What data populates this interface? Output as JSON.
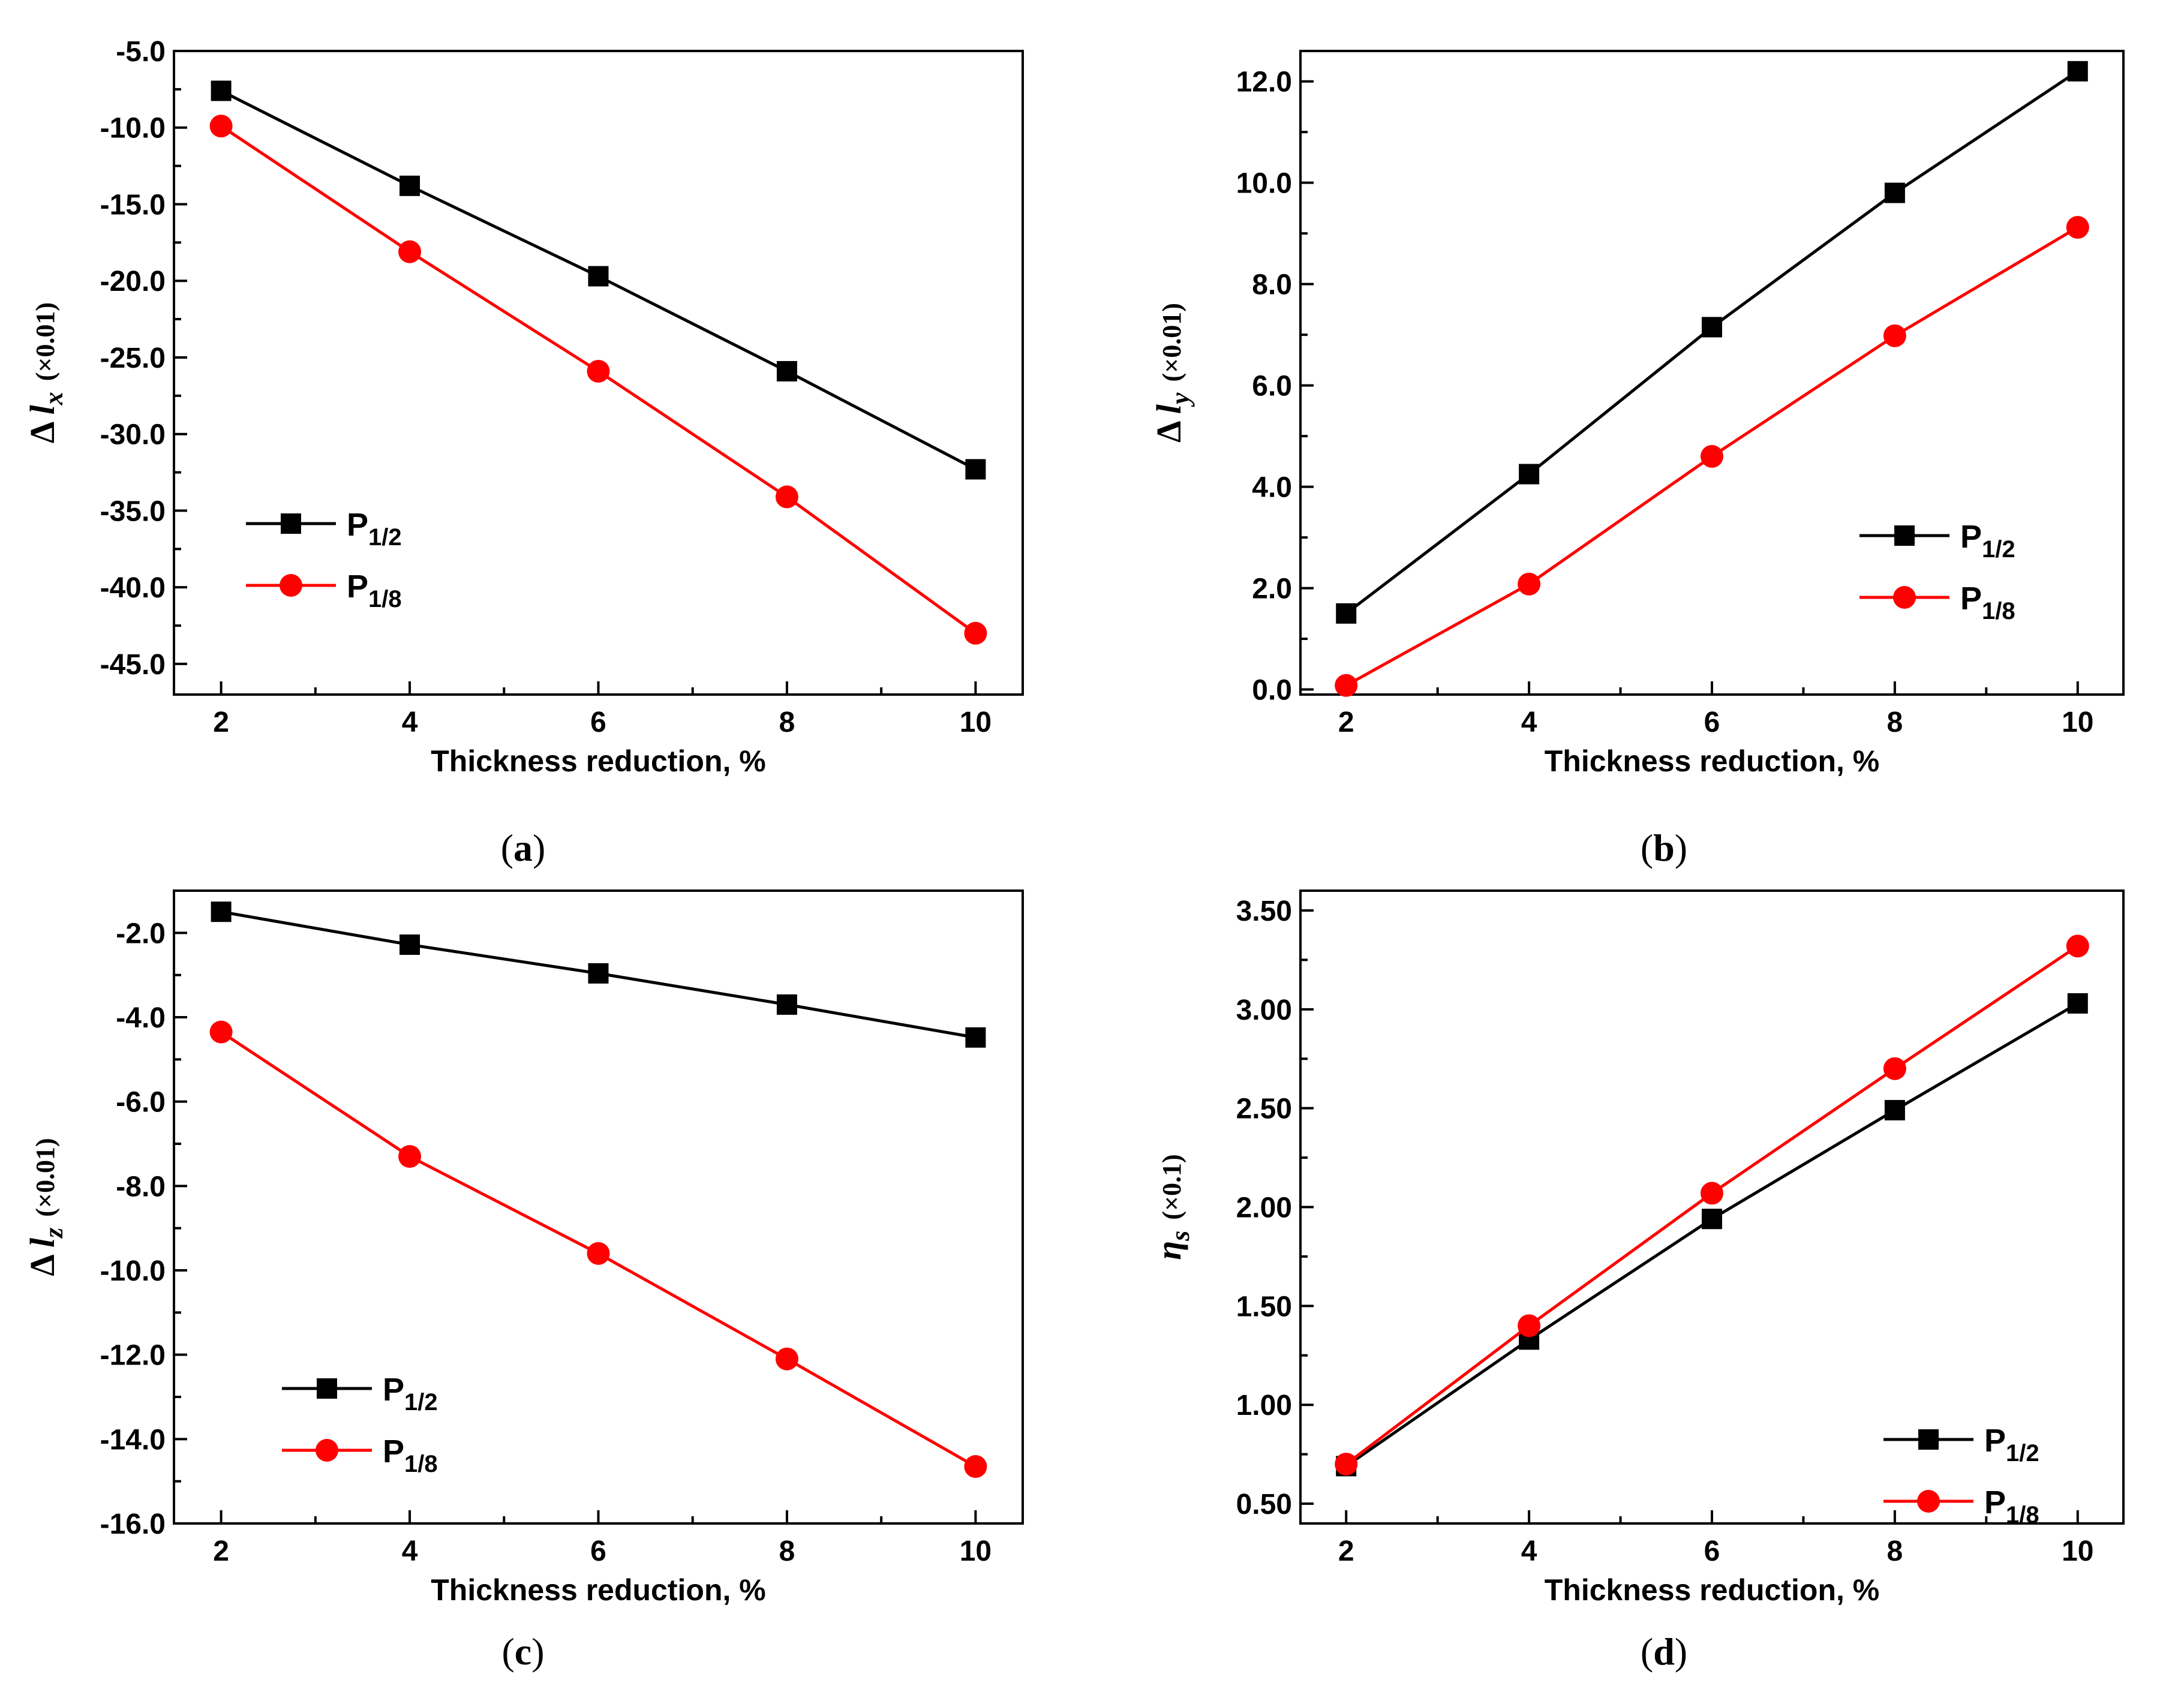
{
  "colors": {
    "p12": "#000000",
    "p18": "#ff0000"
  },
  "chart_data": [
    {
      "panel": "a",
      "type": "line",
      "caption": {
        "open": "(",
        "letter": "a",
        "close": ")"
      },
      "xlabel": "Thickness reduction, %",
      "ylabel": {
        "prefix": "Δ ",
        "var": "l",
        "sub": "x",
        "unit": "(×0.01)"
      },
      "x": [
        2,
        4,
        6,
        8,
        10
      ],
      "xticks": [
        "2",
        "4",
        "6",
        "8",
        "10"
      ],
      "xlim": [
        1.5,
        10.5
      ],
      "ylim": [
        -47.0,
        -5.0
      ],
      "yticks": [
        -45,
        -40,
        -35,
        -30,
        -25,
        -20,
        -15,
        -10,
        -5
      ],
      "ytick_labels": [
        "-45.0",
        "-40.0",
        "-35.0",
        "-30.0",
        "-25.0",
        "-20.0",
        "-15.0",
        "-10.0",
        "-5.0"
      ],
      "legend_position": "bottom-left",
      "series": [
        {
          "name": "P",
          "sub": "1/2",
          "marker": "square",
          "color": "#000000",
          "values": [
            -7.6,
            -13.8,
            -19.7,
            -25.9,
            -32.3
          ]
        },
        {
          "name": "P",
          "sub": "1/8",
          "marker": "circle",
          "color": "#ff0000",
          "values": [
            -9.9,
            -18.1,
            -25.9,
            -34.1,
            -43.0
          ]
        }
      ]
    },
    {
      "panel": "b",
      "type": "line",
      "caption": {
        "open": "(",
        "letter": "b",
        "close": ")"
      },
      "xlabel": "Thickness reduction, %",
      "ylabel": {
        "prefix": "Δ ",
        "var": "l",
        "sub": "y",
        "unit": "(×0.01)"
      },
      "x": [
        2,
        4,
        6,
        8,
        10
      ],
      "xticks": [
        "2",
        "4",
        "6",
        "8",
        "10"
      ],
      "xlim": [
        1.5,
        10.5
      ],
      "ylim": [
        -0.1,
        12.6
      ],
      "yticks": [
        0,
        2,
        4,
        6,
        8,
        10,
        12
      ],
      "ytick_labels": [
        "0.0",
        "2.0",
        "4.0",
        "6.0",
        "8.0",
        "10.0",
        "12.0"
      ],
      "legend_position": "bottom-right",
      "series": [
        {
          "name": "P",
          "sub": "1/2",
          "marker": "square",
          "color": "#000000",
          "values": [
            1.5,
            4.25,
            7.15,
            9.8,
            12.2
          ]
        },
        {
          "name": "P",
          "sub": "1/8",
          "marker": "circle",
          "color": "#ff0000",
          "values": [
            0.08,
            2.08,
            4.6,
            6.98,
            9.12
          ]
        }
      ]
    },
    {
      "panel": "c",
      "type": "line",
      "caption": {
        "open": "(",
        "letter": "c",
        "close": ")"
      },
      "xlabel": "Thickness reduction, %",
      "ylabel": {
        "prefix": "Δ ",
        "var": "l",
        "sub": "z",
        "unit": "(×0.01)"
      },
      "x": [
        2,
        4,
        6,
        8,
        10
      ],
      "xticks": [
        "2",
        "4",
        "6",
        "8",
        "10"
      ],
      "xlim": [
        1.5,
        10.5
      ],
      "ylim": [
        -16.0,
        -1.0
      ],
      "yticks": [
        -16,
        -14,
        -12,
        -10,
        -8,
        -6,
        -4,
        -2
      ],
      "ytick_labels": [
        "-16.0",
        "-14.0",
        "-12.0",
        "-10.0",
        "-8.0",
        "-6.0",
        "-4.0",
        "-2.0"
      ],
      "legend_position": "bottom-left",
      "series": [
        {
          "name": "P",
          "sub": "1/2",
          "marker": "square",
          "color": "#000000",
          "values": [
            -1.5,
            -2.28,
            -2.96,
            -3.7,
            -4.48
          ]
        },
        {
          "name": "P",
          "sub": "1/8",
          "marker": "circle",
          "color": "#ff0000",
          "values": [
            -4.35,
            -7.3,
            -9.6,
            -12.1,
            -14.65
          ]
        }
      ]
    },
    {
      "panel": "d",
      "type": "line",
      "caption": {
        "open": "(",
        "letter": "d",
        "close": ")"
      },
      "xlabel": "Thickness reduction, %",
      "ylabel": {
        "prefix": "",
        "var": "η",
        "sub": "s",
        "unit": "(×0.1)"
      },
      "x": [
        2,
        4,
        6,
        8,
        10
      ],
      "xticks": [
        "2",
        "4",
        "6",
        "8",
        "10"
      ],
      "xlim": [
        1.5,
        10.5
      ],
      "ylim": [
        0.4,
        3.6
      ],
      "yticks": [
        0.5,
        1.0,
        1.5,
        2.0,
        2.5,
        3.0,
        3.5
      ],
      "ytick_labels": [
        "0.50",
        "1.00",
        "1.50",
        "2.00",
        "2.50",
        "3.00",
        "3.50"
      ],
      "legend_position": "bottom-right",
      "series": [
        {
          "name": "P",
          "sub": "1/2",
          "marker": "square",
          "color": "#000000",
          "values": [
            0.69,
            1.33,
            1.94,
            2.49,
            3.03
          ]
        },
        {
          "name": "P",
          "sub": "1/8",
          "marker": "circle",
          "color": "#ff0000",
          "values": [
            0.7,
            1.4,
            2.07,
            2.7,
            3.32
          ]
        }
      ]
    }
  ]
}
